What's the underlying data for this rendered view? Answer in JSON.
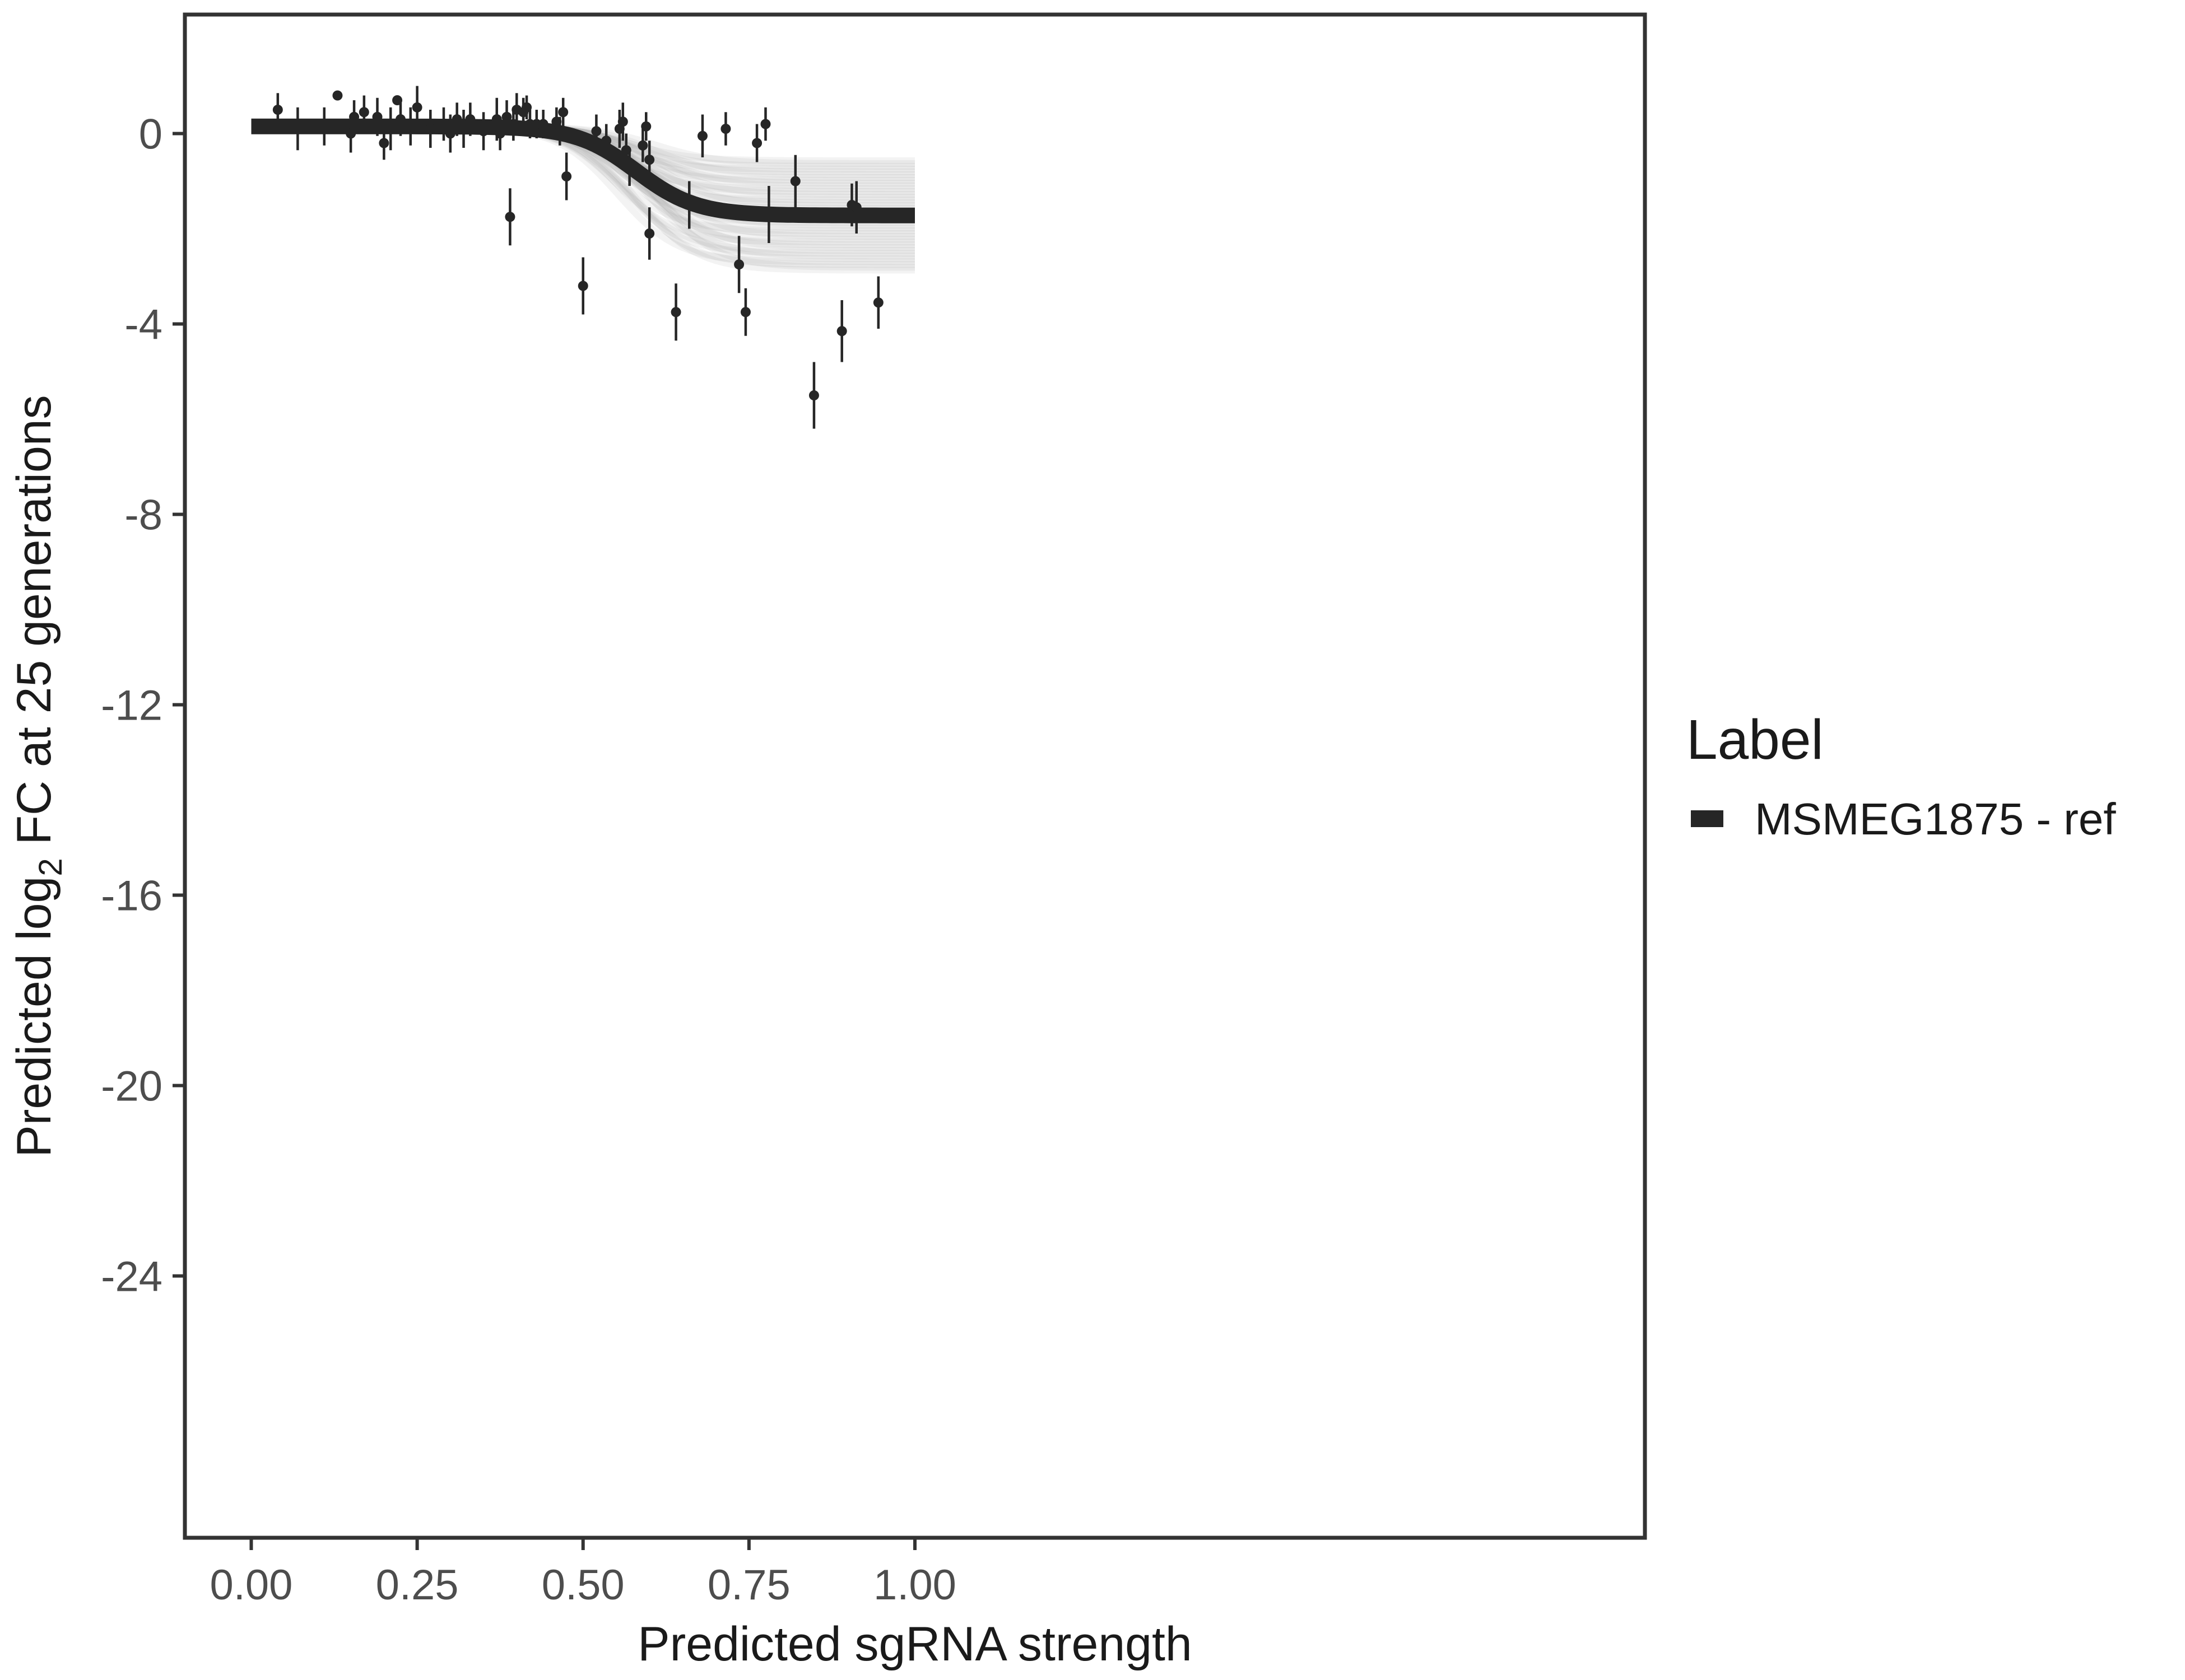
{
  "chart_data": {
    "type": "scatter",
    "xlabel": "Predicted sgRNA strength",
    "ylabel_prefix": "Predicted  log",
    "ylabel_sub": "2",
    "ylabel_suffix": " FC at 25 generations",
    "xlim": [
      -0.1,
      2.1
    ],
    "ylim": [
      -29.5,
      2.5
    ],
    "x_ticks": [
      0.0,
      0.25,
      0.5,
      0.75,
      1.0
    ],
    "x_tick_labels": [
      "0.00",
      "0.25",
      "0.50",
      "0.75",
      "1.00"
    ],
    "y_ticks": [
      0,
      -4,
      -8,
      -12,
      -16,
      -20,
      -24
    ],
    "y_tick_labels": [
      "0",
      "-4",
      "-8",
      "-12",
      "-16",
      "-20",
      "-24"
    ],
    "grid": false,
    "legend": {
      "title": "Label",
      "position": "right",
      "entries": [
        {
          "label": "MSMEG1875 - ref",
          "color": "#262626"
        }
      ]
    },
    "colors": {
      "line": "#262626",
      "band": "#9a9a9a",
      "points": "#262626",
      "frame": "#333333"
    },
    "fit_curve": {
      "upper": 0.15,
      "lower": -1.72,
      "midpoint": 0.58,
      "slope": 22
    },
    "series": [
      {
        "name": "MSMEG1875 - ref",
        "points": [
          {
            "x": 0.04,
            "y": 0.5,
            "err": 0.35
          },
          {
            "x": 0.07,
            "y": 0.1,
            "err": 0.45
          },
          {
            "x": 0.11,
            "y": 0.15,
            "err": 0.4
          },
          {
            "x": 0.13,
            "y": 0.8,
            "err": 0.05
          },
          {
            "x": 0.15,
            "y": 0.0,
            "err": 0.4
          },
          {
            "x": 0.155,
            "y": 0.35,
            "err": 0.35
          },
          {
            "x": 0.17,
            "y": 0.45,
            "err": 0.35
          },
          {
            "x": 0.19,
            "y": 0.35,
            "err": 0.4
          },
          {
            "x": 0.2,
            "y": -0.2,
            "err": 0.35
          },
          {
            "x": 0.21,
            "y": 0.1,
            "err": 0.45
          },
          {
            "x": 0.22,
            "y": 0.7,
            "err": 0.1
          },
          {
            "x": 0.225,
            "y": 0.3,
            "err": 0.35
          },
          {
            "x": 0.24,
            "y": 0.15,
            "err": 0.4
          },
          {
            "x": 0.25,
            "y": 0.55,
            "err": 0.45
          },
          {
            "x": 0.27,
            "y": 0.1,
            "err": 0.4
          },
          {
            "x": 0.29,
            "y": 0.2,
            "err": 0.35
          },
          {
            "x": 0.3,
            "y": 0.0,
            "err": 0.4
          },
          {
            "x": 0.31,
            "y": 0.3,
            "err": 0.35
          },
          {
            "x": 0.32,
            "y": 0.1,
            "err": 0.4
          },
          {
            "x": 0.33,
            "y": 0.3,
            "err": 0.35
          },
          {
            "x": 0.35,
            "y": 0.05,
            "err": 0.4
          },
          {
            "x": 0.37,
            "y": 0.3,
            "err": 0.45
          },
          {
            "x": 0.375,
            "y": 0.0,
            "err": 0.35
          },
          {
            "x": 0.385,
            "y": 0.35,
            "err": 0.35
          },
          {
            "x": 0.39,
            "y": -1.75,
            "err": 0.6
          },
          {
            "x": 0.395,
            "y": 0.2,
            "err": 0.35
          },
          {
            "x": 0.4,
            "y": 0.5,
            "err": 0.35
          },
          {
            "x": 0.41,
            "y": 0.45,
            "err": 0.3
          },
          {
            "x": 0.415,
            "y": 0.55,
            "err": 0.25
          },
          {
            "x": 0.42,
            "y": 0.2,
            "err": 0.3
          },
          {
            "x": 0.43,
            "y": 0.2,
            "err": 0.3
          },
          {
            "x": 0.44,
            "y": 0.2,
            "err": 0.3
          },
          {
            "x": 0.46,
            "y": 0.25,
            "err": 0.3
          },
          {
            "x": 0.465,
            "y": 0.05,
            "err": 0.3
          },
          {
            "x": 0.47,
            "y": 0.45,
            "err": 0.3
          },
          {
            "x": 0.475,
            "y": -0.9,
            "err": 0.5
          },
          {
            "x": 0.5,
            "y": -3.2,
            "err": 0.6
          },
          {
            "x": 0.52,
            "y": 0.05,
            "err": 0.35
          },
          {
            "x": 0.535,
            "y": -0.15,
            "err": 0.35
          },
          {
            "x": 0.555,
            "y": 0.1,
            "err": 0.4
          },
          {
            "x": 0.56,
            "y": 0.25,
            "err": 0.4
          },
          {
            "x": 0.565,
            "y": -0.35,
            "err": 0.35
          },
          {
            "x": 0.57,
            "y": -0.7,
            "err": 0.4
          },
          {
            "x": 0.59,
            "y": -0.25,
            "err": 0.35
          },
          {
            "x": 0.595,
            "y": 0.15,
            "err": 0.3
          },
          {
            "x": 0.6,
            "y": -0.55,
            "err": 0.4
          },
          {
            "x": 0.6,
            "y": -2.1,
            "err": 0.55
          },
          {
            "x": 0.64,
            "y": -3.75,
            "err": 0.6
          },
          {
            "x": 0.66,
            "y": -1.5,
            "err": 0.5
          },
          {
            "x": 0.68,
            "y": -0.05,
            "err": 0.45
          },
          {
            "x": 0.715,
            "y": 0.1,
            "err": 0.35
          },
          {
            "x": 0.735,
            "y": -2.75,
            "err": 0.6
          },
          {
            "x": 0.745,
            "y": -3.75,
            "err": 0.5
          },
          {
            "x": 0.762,
            "y": -0.2,
            "err": 0.4
          },
          {
            "x": 0.775,
            "y": 0.2,
            "err": 0.35
          },
          {
            "x": 0.78,
            "y": -1.7,
            "err": 0.6
          },
          {
            "x": 0.82,
            "y": -1.0,
            "err": 0.55
          },
          {
            "x": 0.848,
            "y": -5.5,
            "err": 0.7
          },
          {
            "x": 0.89,
            "y": -4.15,
            "err": 0.65
          },
          {
            "x": 0.905,
            "y": -1.5,
            "err": 0.45
          },
          {
            "x": 0.912,
            "y": -1.55,
            "err": 0.55
          },
          {
            "x": 0.945,
            "y": -3.55,
            "err": 0.55
          }
        ]
      }
    ]
  }
}
